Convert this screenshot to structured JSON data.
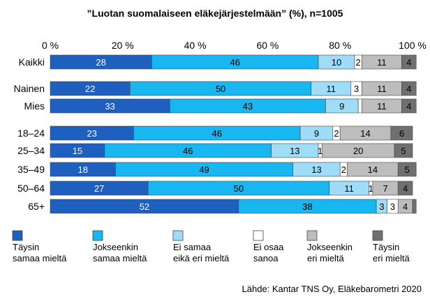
{
  "chart_data": {
    "type": "bar",
    "orientation": "horizontal",
    "stacked": true,
    "title": "”Luotan suomalaiseen eläkejärjestelmään” (%), n=1005",
    "x_ticks": [
      "0 %",
      "20 %",
      "40 %",
      "60 %",
      "80 %",
      "100 %"
    ],
    "xlim": [
      0,
      100
    ],
    "grid": false,
    "legend_position": "bottom",
    "categories": [
      "Kaikki",
      "Nainen",
      "Mies",
      "18–24",
      "25–34",
      "35–49",
      "50–64",
      "65+"
    ],
    "series": [
      {
        "name": "Täysin samaa mieltä",
        "color": "#1f5fbf",
        "label_color": "#ffffff",
        "values": [
          28,
          22,
          33,
          23,
          15,
          18,
          27,
          52
        ]
      },
      {
        "name": "Jokseenkin samaa mieltä",
        "color": "#18b7f2",
        "label_color": "#000000",
        "values": [
          46,
          50,
          43,
          46,
          46,
          49,
          50,
          38
        ]
      },
      {
        "name": "Ei samaa eikä eri mieltä",
        "color": "#9fdcf7",
        "label_color": "#000000",
        "values": [
          10,
          11,
          9,
          9,
          13,
          13,
          11,
          3
        ]
      },
      {
        "name": "Ei osaa sanoa",
        "color": "#ffffff",
        "label_color": "#000000",
        "values": [
          2,
          3,
          1,
          2,
          1,
          2,
          1,
          3
        ]
      },
      {
        "name": "Jokseenkin eri mieltä",
        "color": "#bdbdbd",
        "label_color": "#000000",
        "values": [
          11,
          11,
          11,
          14,
          20,
          14,
          7,
          4
        ]
      },
      {
        "name": "Täysin eri mieltä",
        "color": "#707070",
        "label_color": "#000000",
        "values": [
          4,
          4,
          4,
          6,
          5,
          5,
          4,
          1
        ]
      }
    ],
    "value_labels": [
      [
        "28",
        "46",
        "10",
        "2",
        "11",
        "4"
      ],
      [
        "22",
        "50",
        "11",
        "3",
        "11",
        "4"
      ],
      [
        "33",
        "43",
        "9",
        "",
        "11",
        "4"
      ],
      [
        "23",
        "46",
        "9",
        "2",
        "14",
        "6"
      ],
      [
        "15",
        "46",
        "13",
        "1",
        "20",
        "5"
      ],
      [
        "18",
        "49",
        "13",
        "2",
        "14",
        "5"
      ],
      [
        "27",
        "50",
        "11",
        "1",
        "7",
        "4"
      ],
      [
        "52",
        "38",
        "3",
        "3",
        "4",
        ""
      ]
    ],
    "legend_labels": [
      [
        "Täysin",
        "samaa mieltä"
      ],
      [
        "Jokseenkin",
        "samaa mieltä"
      ],
      [
        "Ei samaa",
        "eikä eri mieltä"
      ],
      [
        "Ei osaa",
        "sanoa"
      ],
      [
        "Jokseenkin",
        "eri mieltä"
      ],
      [
        "Täysin",
        "eri mieltä"
      ]
    ]
  },
  "source": "Lähde: Kantar TNS Oy, Eläkebarometri 2020"
}
